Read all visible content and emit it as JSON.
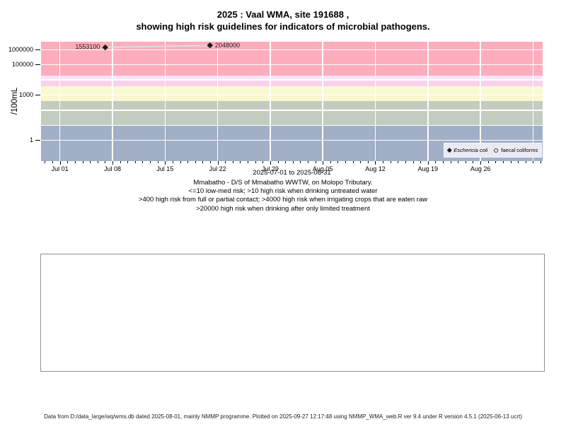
{
  "title": {
    "line1": "2025 : Vaal WMA, site 191688 ,",
    "line2": "showing high risk guidelines for indicators of microbial pathogens."
  },
  "chart_data": {
    "type": "scatter",
    "title": "2025 : Vaal WMA, site 191688 , showing high risk guidelines for indicators of microbial pathogens.",
    "ylabel": "/100mL",
    "xlabel": "2025-07-01 to 2025-08-31",
    "y_scale": "log",
    "grid": true,
    "legend_position": "bottom-right",
    "y_tick_labels": [
      {
        "value": 1000000,
        "label": "1000000"
      },
      {
        "value": 100000,
        "label": "100000"
      },
      {
        "value": 1000,
        "label": "1000"
      },
      {
        "value": 1,
        "label": "1"
      }
    ],
    "y_gridline_values": [
      1,
      10,
      100,
      1000,
      10000,
      100000,
      1000000
    ],
    "x_ticks": [
      {
        "day": 0,
        "label": "Jul 01"
      },
      {
        "day": 7,
        "label": "Jul 08"
      },
      {
        "day": 14,
        "label": "Jul 15"
      },
      {
        "day": 21,
        "label": "Jul 22"
      },
      {
        "day": 28,
        "label": "Jul 29"
      },
      {
        "day": 35,
        "label": "Aug 05"
      },
      {
        "day": 42,
        "label": "Aug 12"
      },
      {
        "day": 49,
        "label": "Aug 19"
      },
      {
        "day": 56,
        "label": "Aug 26"
      }
    ],
    "series": [
      {
        "name": "Eschericia coli",
        "marker": "filled-diamond",
        "points": [
          {
            "day": 6,
            "value": 1553100,
            "label": "1553100",
            "label_side": "left"
          },
          {
            "day": 20,
            "value": 2048000,
            "label": "2048000",
            "label_side": "right"
          }
        ]
      },
      {
        "name": "faecal coliforms",
        "marker": "open-circle",
        "points": []
      }
    ],
    "risk_bands": [
      {
        "range_from": 20000,
        "range_to": null,
        "color": "#feadbc",
        "guideline": ">20000 high risk when drinking after only limited treatment"
      },
      {
        "range_from": 10000,
        "range_to": 20000,
        "color": "#fce4f6",
        "guideline": ">4000 high risk when irrigating crops that are eaten raw"
      },
      {
        "range_from": 4000,
        "range_to": 10000,
        "color": "#f8d2ed",
        "guideline": ">4000 high risk when irrigating crops that are eaten raw"
      },
      {
        "range_from": 400,
        "range_to": 4000,
        "color": "#faf8d1",
        "guideline": ">400 high risk from full or partial contact"
      },
      {
        "range_from": 10,
        "range_to": 400,
        "color": "#c3ccbf",
        "guideline": ">10 high risk when drinking untreated water"
      },
      {
        "range_from": null,
        "range_to": 10,
        "color": "#a1afc7",
        "guideline": "<=10 low-med risk"
      }
    ]
  },
  "captions": [
    "Mmabatho - D/S of Mmabatho WWTW, on Molopo Tributary.",
    "<=10 low-med risk; >10 high risk when drinking untreated water",
    ">400 high risk from full or partial contact; >4000 high risk when irrigating crops that are eaten raw",
    ">20000 high risk when drinking after only limited treatment"
  ],
  "footer": "Data from D:/data_large/wq/wms.db dated 2025-08-01, mainly NMMP programme. Plotted on 2025-09-27 12:17:48 using NMMP_WMA_web.R ver 9.4 under R version 4.5.1 (2025-06-13 ucrt)"
}
